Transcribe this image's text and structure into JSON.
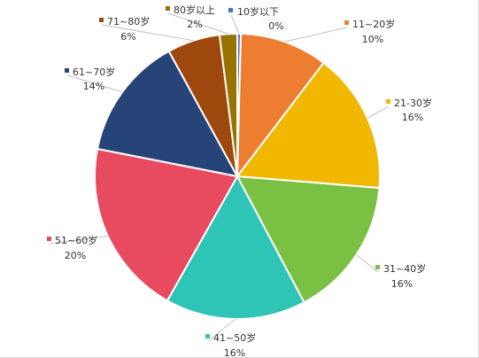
{
  "chart_data": {
    "type": "pie",
    "title": "",
    "series": [
      {
        "categories": [
          "10岁以下",
          "11~20岁",
          "21-30岁",
          "31~40岁",
          "41~50岁",
          "51~60岁",
          "61~70岁",
          "71~80岁",
          "80岁以上"
        ],
        "values": [
          0.4,
          10,
          16,
          16,
          16,
          20,
          14,
          6,
          2
        ],
        "percent_labels": [
          "0%",
          "10%",
          "16%",
          "16%",
          "16%",
          "20%",
          "14%",
          "6%",
          "2%"
        ],
        "colors": [
          "#4472C4",
          "#ED7D31",
          "#F2B700",
          "#7AC143",
          "#2EC4B6",
          "#E84A5F",
          "#264478",
          "#9E480E",
          "#997300"
        ]
      }
    ],
    "start_angle_deg": 0,
    "direction": "clockwise",
    "legend": "none",
    "data_labels": "category-and-percent"
  }
}
